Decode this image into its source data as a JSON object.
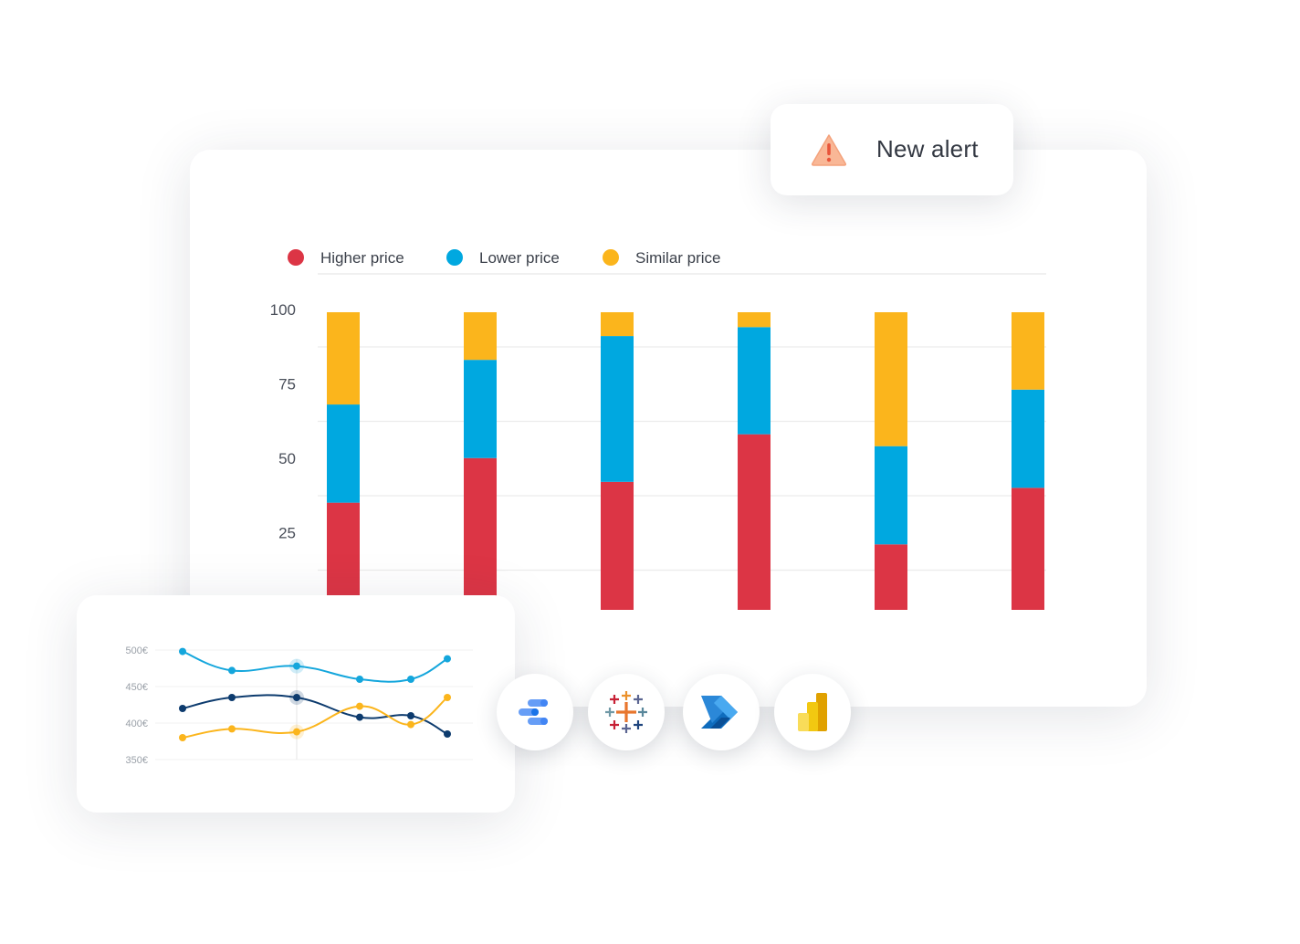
{
  "alert": {
    "label": "New alert",
    "icon": "warning-icon",
    "icon_color": "#f7a37a",
    "icon_mark_color": "#e8553a"
  },
  "colors": {
    "higher": "#dc3545",
    "lower": "#00a8e0",
    "similar": "#fbb51c",
    "grid": "#ececec",
    "axis_text": "#4a4f5a"
  },
  "chart_data": [
    {
      "type": "bar",
      "stacked": true,
      "legend": [
        "Higher price",
        "Lower price",
        "Similar price"
      ],
      "legend_position": "top-left",
      "yticks": [
        "25",
        "50",
        "75",
        "100"
      ],
      "ylim": [
        0,
        100
      ],
      "categories": [
        "",
        "",
        "",
        "",
        "",
        ""
      ],
      "series": [
        {
          "name": "Higher price",
          "values": [
            36,
            51,
            43,
            59,
            22,
            41
          ]
        },
        {
          "name": "Lower price",
          "values": [
            33,
            33,
            49,
            36,
            33,
            33
          ]
        },
        {
          "name": "Similar price",
          "values": [
            31,
            16,
            8,
            5,
            45,
            26
          ]
        }
      ],
      "grid": true
    },
    {
      "type": "line",
      "yticks": [
        "350€",
        "400€",
        "450€",
        "500€"
      ],
      "ylim": [
        350,
        500
      ],
      "x": [
        1,
        2,
        3,
        4,
        5,
        6
      ],
      "series": [
        {
          "color": "#14a6dc",
          "values": [
            498,
            472,
            478,
            460,
            460,
            488
          ]
        },
        {
          "color": "#0d3b6e",
          "values": [
            420,
            435,
            435,
            408,
            410,
            385
          ]
        },
        {
          "color": "#fbb51c",
          "values": [
            380,
            392,
            388,
            423,
            398,
            435
          ]
        }
      ],
      "highlight_index": 2,
      "grid": true
    }
  ],
  "integrations": [
    {
      "name": "looker-studio-icon"
    },
    {
      "name": "tableau-icon"
    },
    {
      "name": "power-automate-icon"
    },
    {
      "name": "power-bi-icon"
    }
  ]
}
